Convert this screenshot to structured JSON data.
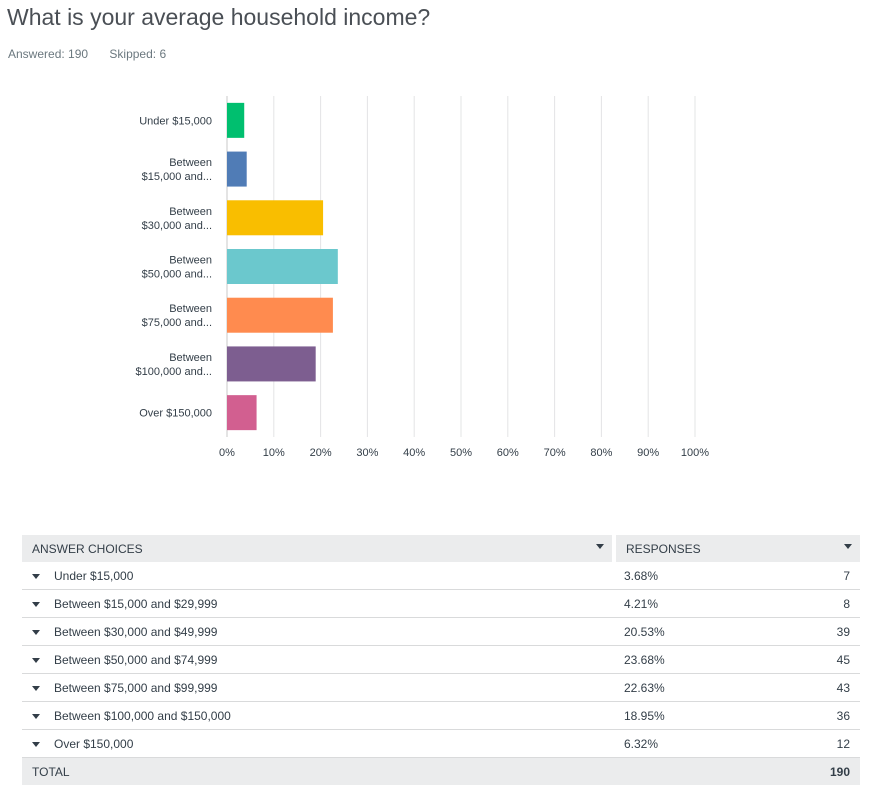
{
  "question": {
    "title": "What is your average household income?",
    "answered": "Answered: 190",
    "skipped": "Skipped: 6"
  },
  "chart_data": {
    "type": "bar",
    "orientation": "horizontal",
    "categories": [
      [
        "Under $15,000"
      ],
      [
        "Between",
        "$15,000 and..."
      ],
      [
        "Between",
        "$30,000 and..."
      ],
      [
        "Between",
        "$50,000 and..."
      ],
      [
        "Between",
        "$75,000 and..."
      ],
      [
        "Between",
        "$100,000 and..."
      ],
      [
        "Over $150,000"
      ]
    ],
    "values": [
      3.68,
      4.21,
      20.53,
      23.68,
      22.63,
      18.95,
      6.32
    ],
    "colors": [
      "#00bf6f",
      "#507cb6",
      "#f9be00",
      "#6bc8cd",
      "#ff8b4f",
      "#7d5e90",
      "#d25f90"
    ],
    "xlim": [
      0,
      100
    ],
    "xticks": [
      "0%",
      "10%",
      "20%",
      "30%",
      "40%",
      "50%",
      "60%",
      "70%",
      "80%",
      "90%",
      "100%"
    ],
    "grid": true
  },
  "table": {
    "headers": {
      "choices": "ANSWER CHOICES",
      "responses": "RESPONSES"
    },
    "rows": [
      {
        "choice": "Under $15,000",
        "percent": "3.68%",
        "count": "7"
      },
      {
        "choice": "Between $15,000 and $29,999",
        "percent": "4.21%",
        "count": "8"
      },
      {
        "choice": "Between $30,000 and $49,999",
        "percent": "20.53%",
        "count": "39"
      },
      {
        "choice": "Between $50,000 and $74,999",
        "percent": "23.68%",
        "count": "45"
      },
      {
        "choice": "Between $75,000 and $99,999",
        "percent": "22.63%",
        "count": "43"
      },
      {
        "choice": "Between $100,000 and $150,000",
        "percent": "18.95%",
        "count": "36"
      },
      {
        "choice": "Over $150,000",
        "percent": "6.32%",
        "count": "12"
      }
    ],
    "total": {
      "label": "TOTAL",
      "count": "190"
    }
  }
}
